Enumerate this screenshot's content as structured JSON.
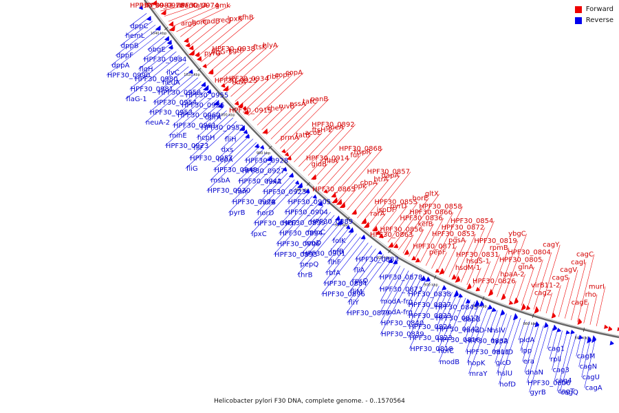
{
  "legend": {
    "forward_label": "Forward",
    "reverse_label": "Reverse",
    "forward_color": "#ee0000",
    "reverse_color": "#0000ee"
  },
  "caption": "Helicobacter pylori F30 DNA, complete genome. - 0..1570564",
  "ticks": [
    "1040 kbp",
    "1020 kbp",
    "1000 kbp",
    "980 kbp",
    "960 kbp",
    "940 kbp",
    "920 kbp",
    "900 kbp",
    "880 kbp",
    "860 kbp",
    "840 kbp"
  ],
  "labels": [
    {
      "t": "dppC",
      "s": "r",
      "a": "e"
    },
    {
      "t": "hemL",
      "s": "r",
      "a": "e"
    },
    {
      "t": "dppB",
      "s": "r",
      "a": "e"
    },
    {
      "t": "dppF",
      "s": "r",
      "a": "e"
    },
    {
      "t": "dppA",
      "s": "r",
      "a": "e"
    },
    {
      "t": "HPF30_0990",
      "s": "r",
      "a": "e"
    },
    {
      "t": "HPF30_0983",
      "s": "f",
      "a": "e"
    },
    {
      "t": "HPF30_0978",
      "s": "f",
      "a": "e"
    },
    {
      "t": "obgE",
      "s": "r",
      "a": "e"
    },
    {
      "t": "HPF30_0984",
      "s": "r",
      "a": "e"
    },
    {
      "t": "narK",
      "s": "f",
      "a": "e"
    },
    {
      "t": "tatA",
      "s": "f",
      "a": "e"
    },
    {
      "t": "HPF30_0974",
      "s": "f",
      "a": "e"
    },
    {
      "t": "flgH",
      "s": "r",
      "a": "e"
    },
    {
      "t": "HPF30_0980",
      "s": "r",
      "a": "e"
    },
    {
      "t": "gmk",
      "s": "f",
      "a": "e"
    },
    {
      "t": "HPF30_0981",
      "s": "r",
      "a": "e"
    },
    {
      "t": "argS",
      "s": "f",
      "a": "e"
    },
    {
      "t": "flaG-1",
      "s": "r",
      "a": "e"
    },
    {
      "t": "ilvC",
      "s": "r",
      "a": "e"
    },
    {
      "t": "neuA",
      "s": "r",
      "a": "e"
    },
    {
      "t": "HPF30_0958",
      "s": "r",
      "a": "e"
    },
    {
      "t": "horC",
      "s": "f",
      "a": "e"
    },
    {
      "t": "HPF30_0954",
      "s": "r",
      "a": "e"
    },
    {
      "t": "nadE",
      "s": "f",
      "a": "e"
    },
    {
      "t": "recJ",
      "s": "f",
      "a": "e"
    },
    {
      "t": "lpxK",
      "s": "f",
      "a": "e"
    },
    {
      "t": "sfhB",
      "s": "f",
      "a": "e"
    },
    {
      "t": "HPF30_0953",
      "s": "r",
      "a": "e"
    },
    {
      "t": "neuA-2",
      "s": "r",
      "a": "e"
    },
    {
      "t": "HPF30_0955",
      "s": "r",
      "a": "e"
    },
    {
      "t": "HPF30_0956",
      "s": "r",
      "a": "e"
    },
    {
      "t": "HPF30_0960",
      "s": "r",
      "a": "e"
    },
    {
      "t": "HPF30_0961",
      "s": "r",
      "a": "e"
    },
    {
      "t": "minE",
      "s": "r",
      "a": "e"
    },
    {
      "t": "pyrG",
      "s": "f",
      "a": "e"
    },
    {
      "t": "flgG-1",
      "s": "f",
      "a": "e"
    },
    {
      "t": "kgtP",
      "s": "f",
      "a": "e"
    },
    {
      "t": "HPF30_0938",
      "s": "f",
      "a": "e"
    },
    {
      "t": "ftsK",
      "s": "f",
      "a": "e"
    },
    {
      "t": "hlyA",
      "s": "f",
      "a": "e"
    },
    {
      "t": "tktA",
      "s": "f",
      "a": "e"
    },
    {
      "t": "HPF30_0925",
      "s": "f",
      "a": "e"
    },
    {
      "t": "HPF30_0934",
      "s": "f",
      "a": "e"
    },
    {
      "t": "ribF",
      "s": "f",
      "a": "e"
    },
    {
      "t": "copP",
      "s": "f",
      "a": "e"
    },
    {
      "t": "copA",
      "s": "f",
      "a": "e"
    },
    {
      "t": "HPF30_0915",
      "s": "f",
      "a": "e"
    },
    {
      "t": "cheY",
      "s": "f",
      "a": "e"
    },
    {
      "t": "ruvB",
      "s": "f",
      "a": "e"
    },
    {
      "t": "pssA",
      "s": "f",
      "a": "e"
    },
    {
      "t": "tatC",
      "s": "f",
      "a": "e"
    },
    {
      "t": "panB",
      "s": "f",
      "a": "e"
    },
    {
      "t": "prmA",
      "s": "f",
      "a": "e"
    },
    {
      "t": "tatB",
      "s": "f",
      "a": "e"
    },
    {
      "t": "acoE",
      "s": "f",
      "a": "e"
    },
    {
      "t": "ftsH-2",
      "s": "f",
      "a": "e"
    },
    {
      "t": "queA",
      "s": "f",
      "a": "e"
    },
    {
      "t": "HPF30_0892",
      "s": "f",
      "a": "e"
    },
    {
      "t": "gidB",
      "s": "f",
      "a": "e"
    },
    {
      "t": "flhA",
      "s": "f",
      "a": "e"
    },
    {
      "t": "HPF30_0914",
      "s": "f",
      "a": "e"
    },
    {
      "t": "fur",
      "s": "f",
      "a": "e"
    },
    {
      "t": "hspR",
      "s": "f",
      "a": "s"
    },
    {
      "t": "HPF30_0868",
      "s": "f",
      "a": "s"
    },
    {
      "t": "HPF30_0865",
      "s": "f",
      "a": "s"
    },
    {
      "t": "ppk",
      "s": "f",
      "a": "s"
    },
    {
      "t": "cbpA",
      "s": "f",
      "a": "s"
    },
    {
      "t": "htrA",
      "s": "f",
      "a": "s"
    },
    {
      "t": "dapA",
      "s": "f",
      "a": "s"
    },
    {
      "t": "HPF30_0857",
      "s": "f",
      "a": "s"
    },
    {
      "t": "rarA",
      "s": "f",
      "a": "s"
    },
    {
      "t": "ispDF",
      "s": "f",
      "a": "s"
    },
    {
      "t": "pyrD",
      "s": "f",
      "a": "s"
    },
    {
      "t": "HPF30_0855",
      "s": "f",
      "a": "s"
    },
    {
      "t": "horE",
      "s": "f",
      "a": "s"
    },
    {
      "t": "gltX",
      "s": "f",
      "a": "s"
    },
    {
      "t": "HPF30_0863",
      "s": "f",
      "a": "s"
    },
    {
      "t": "HPF30_0856",
      "s": "f",
      "a": "s"
    },
    {
      "t": "kefB",
      "s": "f",
      "a": "s"
    },
    {
      "t": "HPF30_0836",
      "s": "f",
      "a": "s"
    },
    {
      "t": "HPF30_0866",
      "s": "f",
      "a": "s"
    },
    {
      "t": "HPF30_0858",
      "s": "f",
      "a": "s"
    },
    {
      "t": "pepF",
      "s": "f",
      "a": "s"
    },
    {
      "t": "HPF30_0871",
      "s": "f",
      "a": "s"
    },
    {
      "t": "pgsA",
      "s": "f",
      "a": "s"
    },
    {
      "t": "HPF30_0853",
      "s": "f",
      "a": "s"
    },
    {
      "t": "HPF30_0872",
      "s": "f",
      "a": "s"
    },
    {
      "t": "HPF30_0854",
      "s": "f",
      "a": "s"
    },
    {
      "t": "hsdM-1",
      "s": "f",
      "a": "s"
    },
    {
      "t": "hsdS-1",
      "s": "f",
      "a": "s"
    },
    {
      "t": "HPF30_0831",
      "s": "f",
      "a": "s"
    },
    {
      "t": "rpmB",
      "s": "f",
      "a": "s"
    },
    {
      "t": "HPF30_0819",
      "s": "f",
      "a": "s"
    },
    {
      "t": "ybgC",
      "s": "f",
      "a": "s"
    },
    {
      "t": "HPF30_0826",
      "s": "f",
      "a": "s"
    },
    {
      "t": "hpaA-2",
      "s": "f",
      "a": "s"
    },
    {
      "t": "glnA",
      "s": "f",
      "a": "s"
    },
    {
      "t": "HPF30_0805",
      "s": "f",
      "a": "s"
    },
    {
      "t": "HPF30_0804",
      "s": "f",
      "a": "s"
    },
    {
      "t": "cagY",
      "s": "f",
      "a": "s"
    },
    {
      "t": "cagZ",
      "s": "f",
      "a": "s"
    },
    {
      "t": "virB11-2",
      "s": "f",
      "a": "s"
    },
    {
      "t": "cagS",
      "s": "f",
      "a": "s"
    },
    {
      "t": "cagV",
      "s": "f",
      "a": "s"
    },
    {
      "t": "cagI",
      "s": "f",
      "a": "s"
    },
    {
      "t": "cagC",
      "s": "f",
      "a": "s"
    },
    {
      "t": "cagE",
      "s": "f",
      "a": "s"
    },
    {
      "t": "rho",
      "s": "f",
      "a": "s"
    },
    {
      "t": "murI",
      "s": "f",
      "a": "s"
    },
    {
      "t": "HPF30_0973",
      "s": "r",
      "a": "s"
    },
    {
      "t": "dprA",
      "s": "r",
      "a": "s"
    },
    {
      "t": "HPF30_0952",
      "s": "r",
      "a": "s"
    },
    {
      "t": "hcpH",
      "s": "r",
      "a": "s"
    },
    {
      "t": "fliF",
      "s": "r",
      "a": "s"
    },
    {
      "t": "HPF30_0957",
      "s": "r",
      "a": "s"
    },
    {
      "t": "fliG",
      "s": "r",
      "a": "s"
    },
    {
      "t": "fliH",
      "s": "r",
      "a": "s"
    },
    {
      "t": "dxs",
      "s": "r",
      "a": "s"
    },
    {
      "t": "lepA",
      "s": "r",
      "a": "s"
    },
    {
      "t": "HPF30_0948",
      "s": "r",
      "a": "s"
    },
    {
      "t": "msbA",
      "s": "r",
      "a": "s"
    },
    {
      "t": "HPF30_0930",
      "s": "r",
      "a": "s"
    },
    {
      "t": "HPF30_0928",
      "s": "r",
      "a": "s"
    },
    {
      "t": "HPF30_0927",
      "s": "r",
      "a": "s"
    },
    {
      "t": "HPF30_0942",
      "s": "r",
      "a": "s"
    },
    {
      "t": "mrr",
      "s": "r",
      "a": "s"
    },
    {
      "t": "HPF30_0924",
      "s": "r",
      "a": "s"
    },
    {
      "t": "pyrB",
      "s": "r",
      "a": "s"
    },
    {
      "t": "nixA",
      "s": "r",
      "a": "s"
    },
    {
      "t": "HPF30_0923",
      "s": "r",
      "a": "s"
    },
    {
      "t": "hofB",
      "s": "r",
      "a": "s"
    },
    {
      "t": "horD",
      "s": "r",
      "a": "s"
    },
    {
      "t": "HPF30_0907",
      "s": "r",
      "a": "s"
    },
    {
      "t": "lpxC",
      "s": "r",
      "a": "s"
    },
    {
      "t": "HPF30_0905",
      "s": "r",
      "a": "s"
    },
    {
      "t": "HPF30_0904",
      "s": "r",
      "a": "s"
    },
    {
      "t": "HPF30_0899",
      "s": "r",
      "a": "s"
    },
    {
      "t": "HPF30_0894",
      "s": "r",
      "a": "s"
    },
    {
      "t": "HPF30_0906",
      "s": "r",
      "a": "s"
    },
    {
      "t": "HPF30_0893",
      "s": "r",
      "a": "s"
    },
    {
      "t": "HPF30_0889",
      "s": "r",
      "a": "s"
    },
    {
      "t": "minC",
      "s": "r",
      "a": "s"
    },
    {
      "t": "aroD",
      "s": "r",
      "a": "s"
    },
    {
      "t": "HPF30_0901",
      "s": "r",
      "a": "s"
    },
    {
      "t": "pepQ",
      "s": "r",
      "a": "s"
    },
    {
      "t": "thrB",
      "s": "r",
      "a": "s"
    },
    {
      "t": "folK",
      "s": "r",
      "a": "s"
    },
    {
      "t": "infB",
      "s": "r",
      "a": "s"
    },
    {
      "t": "flhF",
      "s": "r",
      "a": "s"
    },
    {
      "t": "rbfA",
      "s": "r",
      "a": "s"
    },
    {
      "t": "HPF30_0884",
      "s": "r",
      "a": "s"
    },
    {
      "t": "HPF30_0896",
      "s": "r",
      "a": "s"
    },
    {
      "t": "HPF30_0883",
      "s": "r",
      "a": "s"
    },
    {
      "t": "fliA",
      "s": "r",
      "a": "s"
    },
    {
      "t": "rpsO",
      "s": "r",
      "a": "s"
    },
    {
      "t": "fliM",
      "s": "r",
      "a": "s"
    },
    {
      "t": "fliY",
      "s": "r",
      "a": "s"
    },
    {
      "t": "HPF30_0879",
      "s": "r",
      "a": "s"
    },
    {
      "t": "HPF30_0878",
      "s": "r",
      "a": "s"
    },
    {
      "t": "HPF30_0873",
      "s": "r",
      "a": "s"
    },
    {
      "t": "modA-frg",
      "s": "r",
      "a": "s"
    },
    {
      "t": "modA-frg",
      "s": "r",
      "a": "s"
    },
    {
      "t": "HPF30_0840",
      "s": "r",
      "a": "s"
    },
    {
      "t": "HPF30_0839",
      "s": "r",
      "a": "s"
    },
    {
      "t": "HPF30_0838",
      "s": "r",
      "a": "s"
    },
    {
      "t": "HPF30_0837",
      "s": "r",
      "a": "s"
    },
    {
      "t": "HPF30_0833",
      "s": "r",
      "a": "s"
    },
    {
      "t": "HPF30_0824",
      "s": "r",
      "a": "s"
    },
    {
      "t": "HPF30_0823",
      "s": "r",
      "a": "s"
    },
    {
      "t": "HPF30_0818",
      "s": "r",
      "a": "s"
    },
    {
      "t": "HPF30_0843",
      "s": "r",
      "a": "s"
    },
    {
      "t": "HPF30_0817",
      "s": "r",
      "a": "s"
    },
    {
      "t": "HPF30_0842",
      "s": "r",
      "a": "s"
    },
    {
      "t": "HPF30_0816",
      "s": "r",
      "a": "s"
    },
    {
      "t": "hofC",
      "s": "r",
      "a": "s"
    },
    {
      "t": "modB",
      "s": "r",
      "a": "s"
    },
    {
      "t": "dapB",
      "s": "r",
      "a": "s"
    },
    {
      "t": "modD-N",
      "s": "r",
      "a": "s"
    },
    {
      "t": "HPF30_0832",
      "s": "r",
      "a": "s"
    },
    {
      "t": "HPF30_0811",
      "s": "r",
      "a": "s"
    },
    {
      "t": "hopK",
      "s": "r",
      "a": "s"
    },
    {
      "t": "mraY",
      "s": "r",
      "a": "s"
    },
    {
      "t": "hslV",
      "s": "r",
      "a": "s"
    },
    {
      "t": "typA",
      "s": "r",
      "a": "s"
    },
    {
      "t": "murD",
      "s": "r",
      "a": "s"
    },
    {
      "t": "glcD",
      "s": "r",
      "a": "s"
    },
    {
      "t": "hslU",
      "s": "r",
      "a": "s"
    },
    {
      "t": "hofD",
      "s": "r",
      "a": "s"
    },
    {
      "t": "pldA",
      "s": "r",
      "a": "s"
    },
    {
      "t": "lpp",
      "s": "r",
      "a": "s"
    },
    {
      "t": "era",
      "s": "r",
      "a": "s"
    },
    {
      "t": "dnaN",
      "s": "r",
      "a": "s"
    },
    {
      "t": "HPF30_0806",
      "s": "r",
      "a": "s"
    },
    {
      "t": "gyrB",
      "s": "r",
      "a": "s"
    },
    {
      "t": "cag1",
      "s": "r",
      "a": "s"
    },
    {
      "t": "rpll",
      "s": "r",
      "a": "s"
    },
    {
      "t": "cag3",
      "s": "r",
      "a": "s"
    },
    {
      "t": "cag4",
      "s": "r",
      "a": "s"
    },
    {
      "t": "cagT",
      "s": "r",
      "a": "s"
    },
    {
      "t": "cagQ",
      "s": "r",
      "a": "s"
    },
    {
      "t": "cagM",
      "s": "r",
      "a": "s"
    },
    {
      "t": "cagN",
      "s": "r",
      "a": "s"
    },
    {
      "t": "cagU",
      "s": "r",
      "a": "s"
    },
    {
      "t": "cagA",
      "s": "r",
      "a": "s"
    }
  ]
}
